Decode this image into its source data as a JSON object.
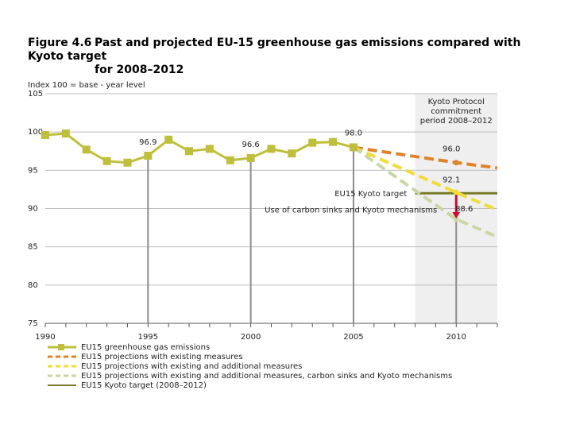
{
  "figure": {
    "number": "Figure 4.6",
    "title_line1": "Past and projected EU-15 greenhouse gas emissions compared with Kyoto target",
    "title_line2": "for 2008–2012"
  },
  "chart_data": {
    "type": "line",
    "ylabel": "Index 100 = base - year level",
    "xlim": [
      1990,
      2012
    ],
    "ylim": [
      75,
      105
    ],
    "xticks": [
      1990,
      1995,
      2000,
      2005,
      2010
    ],
    "yticks": [
      75,
      80,
      85,
      90,
      95,
      100,
      105
    ],
    "commitment_band": {
      "start": 2008,
      "end": 2012,
      "label": [
        "Kyoto Protocol",
        "commitment",
        "period 2008–2012"
      ]
    },
    "series": [
      {
        "name": "EU15 greenhouse gas emissions",
        "style": "solid-square",
        "color": "#bfbf3c",
        "x": [
          1990,
          1991,
          1992,
          1993,
          1994,
          1995,
          1996,
          1997,
          1998,
          1999,
          2000,
          2001,
          2002,
          2003,
          2004,
          2005
        ],
        "values": [
          99.6,
          99.8,
          97.7,
          96.2,
          96.0,
          96.9,
          99.0,
          97.5,
          97.8,
          96.3,
          96.6,
          97.8,
          97.2,
          98.6,
          98.7,
          98.0
        ]
      },
      {
        "name": "EU15 projections with existing measures",
        "style": "dashed",
        "color": "#e0822a",
        "x": [
          2005,
          2010,
          2012
        ],
        "values": [
          98.0,
          96.0,
          95.3
        ]
      },
      {
        "name": "EU15 projections with existing and additional measures",
        "style": "dashed",
        "color": "#f2dc36",
        "x": [
          2005,
          2010,
          2012
        ],
        "values": [
          98.0,
          92.1,
          89.8
        ]
      },
      {
        "name": "EU15 projections with existing and additional measures, carbon sinks and Kyoto mechanisms",
        "style": "dashed",
        "color": "#c9d6a6",
        "x": [
          2005,
          2010,
          2012
        ],
        "values": [
          98.0,
          88.6,
          86.3
        ]
      },
      {
        "name": "EU15 Kyoto target (2008–2012)",
        "style": "solid",
        "color": "#7a7a2c",
        "x": [
          2008,
          2012
        ],
        "values": [
          92.0,
          92.0
        ]
      }
    ],
    "data_labels": [
      {
        "x": 1995,
        "y": 96.9,
        "text": "96.9"
      },
      {
        "x": 2000,
        "y": 96.6,
        "text": "96.6"
      },
      {
        "x": 2005,
        "y": 98.0,
        "text": "98.0"
      },
      {
        "x": 2010,
        "y": 96.0,
        "text": "96.0"
      },
      {
        "x": 2010,
        "y": 92.1,
        "text": "92.1"
      },
      {
        "x": 2010,
        "y": 88.6,
        "text": "88.6"
      }
    ],
    "drop_lines": [
      1995,
      2000,
      2005,
      2010
    ],
    "annotations": {
      "kyoto_target": "EU15 Kyoto target",
      "sinks_mechanisms": "Use of carbon sinks and Kyoto mechanisms"
    },
    "arrow": {
      "x": 2010,
      "from": 92.1,
      "to": 88.6,
      "color": "#c8102e"
    }
  }
}
